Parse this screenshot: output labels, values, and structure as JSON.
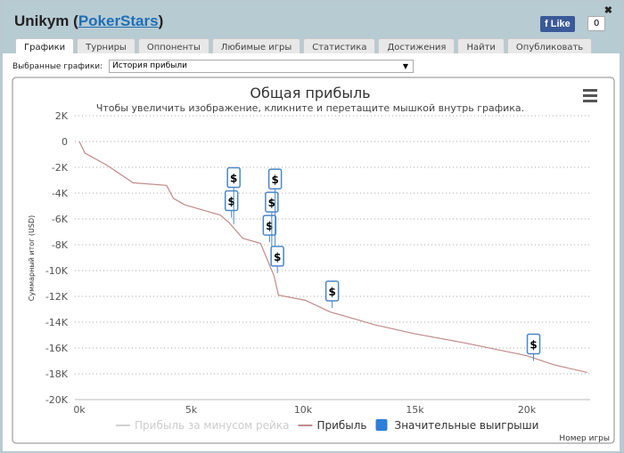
{
  "header": {
    "player": "Unikym",
    "site": "PokerStars",
    "like": "Like",
    "like_count": "0",
    "close": "✖"
  },
  "tabs": [
    "Графики",
    "Турниры",
    "Оппоненты",
    "Любимые игры",
    "Статистика",
    "Достижения",
    "Найти",
    "Опубликовать"
  ],
  "selector": {
    "label": "Выбранные графики:",
    "value": "История прибыли"
  },
  "chart_data": {
    "type": "line",
    "title": "Общая прибыль",
    "subtitle": "Чтобы увеличить изображение, кликните и перетащите мышкой внутрь графика.",
    "xlabel": "Номер игры",
    "ylabel": "Суммарный итог (USD)",
    "xlim": [
      0,
      22700
    ],
    "ylim": [
      -20000,
      2000
    ],
    "xticks": [
      {
        "v": 0,
        "l": "0k"
      },
      {
        "v": 5000,
        "l": "5k"
      },
      {
        "v": 10000,
        "l": "10k"
      },
      {
        "v": 15000,
        "l": "15k"
      },
      {
        "v": 20000,
        "l": "20k"
      }
    ],
    "yticks": [
      {
        "v": 2000,
        "l": "2K"
      },
      {
        "v": 0,
        "l": "0"
      },
      {
        "v": -2000,
        "l": "-2K"
      },
      {
        "v": -4000,
        "l": "-4K"
      },
      {
        "v": -6000,
        "l": "-6K"
      },
      {
        "v": -8000,
        "l": "-8K"
      },
      {
        "v": -10000,
        "l": "-10K"
      },
      {
        "v": -12000,
        "l": "-12K"
      },
      {
        "v": -14000,
        "l": "-14K"
      },
      {
        "v": -16000,
        "l": "-16K"
      },
      {
        "v": -18000,
        "l": "-18K"
      },
      {
        "v": -20000,
        "l": "-20K"
      }
    ],
    "series": [
      {
        "name": "Прибыль",
        "color": "#c08a8a",
        "x": [
          0,
          250,
          1200,
          2400,
          3900,
          4200,
          4700,
          6300,
          6700,
          7300,
          8100,
          8700,
          8900,
          10100,
          11200,
          13200,
          15000,
          17200,
          20000,
          21200,
          22700
        ],
        "y": [
          0,
          -900,
          -1800,
          -3200,
          -3400,
          -4400,
          -4900,
          -5700,
          -6300,
          -7500,
          -7900,
          -10400,
          -11900,
          -12300,
          -13200,
          -14200,
          -14900,
          -15600,
          -16600,
          -17300,
          -17900
        ]
      }
    ],
    "flags": {
      "name": "Значительные выигрыши",
      "label": "$",
      "color": "#4a86c8",
      "points": [
        {
          "x": 6800,
          "y": -5900
        },
        {
          "x": 6900,
          "y": -6400
        },
        {
          "x": 8500,
          "y": -7800
        },
        {
          "x": 8600,
          "y": -8400
        },
        {
          "x": 8750,
          "y": -9000
        },
        {
          "x": 8850,
          "y": -10200
        },
        {
          "x": 11300,
          "y": -12900
        },
        {
          "x": 20300,
          "y": -17000
        }
      ]
    },
    "legend": [
      {
        "name": "Прибыль за минусом рейка",
        "color": "#d0d0d0"
      },
      {
        "name": "Прибыль",
        "color": "#c08a8a"
      },
      {
        "name": "Значительные выигрыши",
        "color": "#2f7ed8"
      }
    ],
    "legend_position": "bottom"
  }
}
